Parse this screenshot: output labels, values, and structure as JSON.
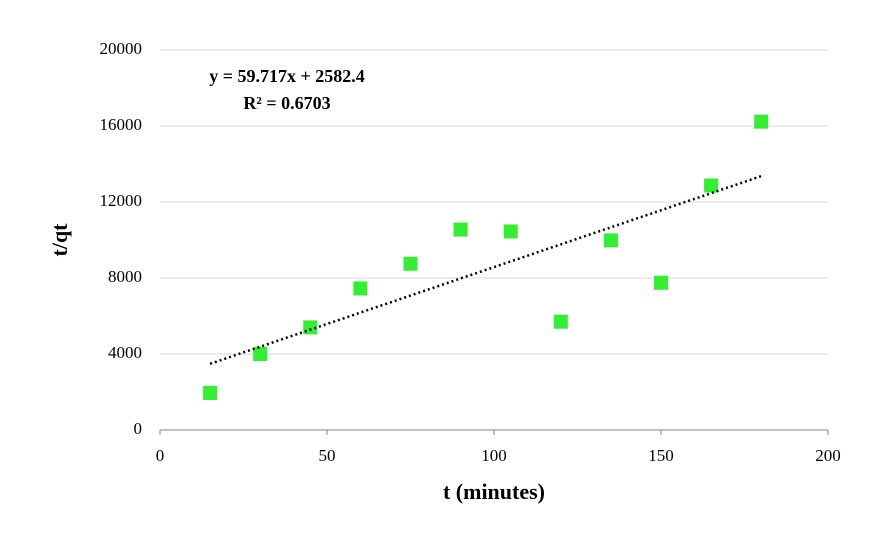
{
  "chart_data": {
    "type": "scatter",
    "x_label": "t (minutes)",
    "y_label": "t/qt",
    "annotations": [
      "y = 59.717x + 2582.4",
      "R² = 0.6703"
    ],
    "series": [
      {
        "name": "t/qt",
        "color": "#33ee33",
        "x": [
          15,
          30,
          45,
          60,
          75,
          90,
          105,
          120,
          135,
          150,
          165,
          180
        ],
        "values": [
          1950,
          4000,
          5400,
          7450,
          8750,
          10550,
          10450,
          5700,
          9980,
          7750,
          12870,
          16230
        ]
      }
    ],
    "trendline": "linear",
    "xlim": [
      0,
      200
    ],
    "xticks": [
      0,
      50,
      100,
      150,
      200
    ],
    "ylim": [
      0,
      20000
    ],
    "yticks": [
      0,
      4000,
      8000,
      12000,
      16000,
      20000
    ],
    "grid": true
  }
}
